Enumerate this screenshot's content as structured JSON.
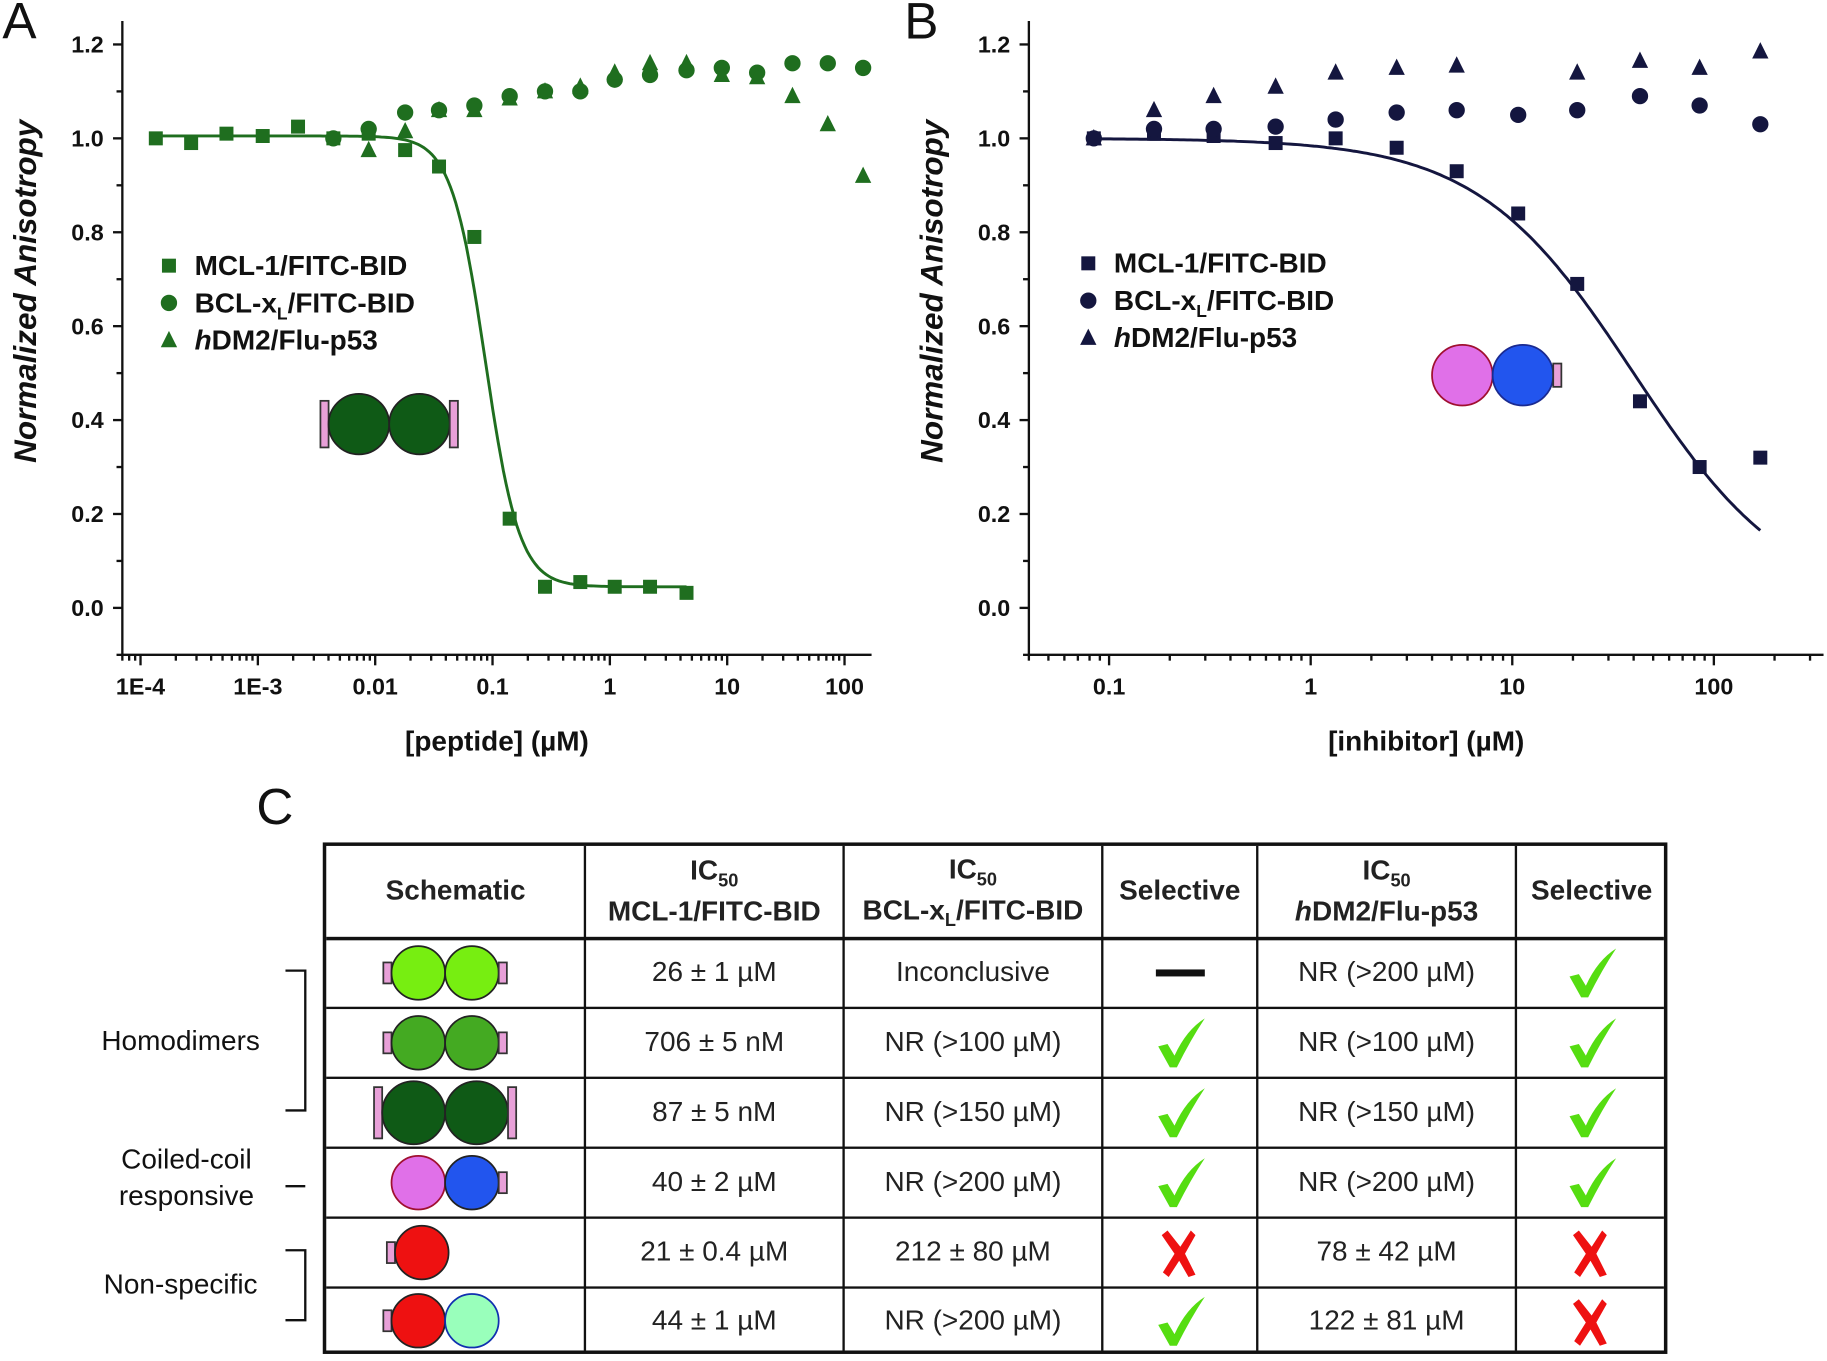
{
  "panels": {
    "a": "A",
    "b": "B",
    "c": "C"
  },
  "colors": {
    "panel_a": "#1f6e1f",
    "panel_b": "#14163f",
    "check": "#55dd11",
    "cross": "#ee1111"
  },
  "chart_data": [
    {
      "type": "scatter",
      "panel": "A",
      "xlabel": "[peptide]  (µM)",
      "ylabel": "Normalized Anisotropy",
      "xscale": "log",
      "xlim": [
        7e-05,
        170
      ],
      "ylim": [
        -0.1,
        1.25
      ],
      "xticks": [
        {
          "v": 0.0001,
          "label": "1E-4"
        },
        {
          "v": 0.001,
          "label": "1E-3"
        },
        {
          "v": 0.01,
          "label": "0.01"
        },
        {
          "v": 0.1,
          "label": "0.1"
        },
        {
          "v": 1,
          "label": "1"
        },
        {
          "v": 10,
          "label": "10"
        },
        {
          "v": 100,
          "label": "100"
        }
      ],
      "yticks": [
        "0.0",
        "0.2",
        "0.4",
        "0.6",
        "0.8",
        "1.0",
        "1.2"
      ],
      "legend": "left-middle",
      "series": [
        {
          "name": "MCL-1/FITC-BID",
          "marker": "square",
          "x": [
            0.000135,
            0.00027,
            0.00054,
            0.0011,
            0.0022,
            0.0044,
            0.0088,
            0.018,
            0.035,
            0.07,
            0.14,
            0.28,
            0.56,
            1.1,
            2.2,
            4.5
          ],
          "y": [
            1.0,
            0.99,
            1.01,
            1.005,
            1.025,
            1.0,
            1.01,
            0.975,
            0.94,
            0.79,
            0.19,
            0.045,
            0.055,
            0.045,
            0.045,
            0.032
          ],
          "fit": {
            "top": 1.005,
            "bottom": 0.045,
            "ic50": 0.087,
            "hill": 3.0,
            "xrange": [
              0.000135,
              4.5
            ]
          }
        },
        {
          "name": "BCL-xL/FITC-BID",
          "name_main": "BCL-x",
          "name_sub": "L",
          "name_rest": "/FITC-BID",
          "marker": "circle",
          "x": [
            0.0044,
            0.0088,
            0.018,
            0.035,
            0.07,
            0.14,
            0.28,
            0.56,
            1.1,
            2.2,
            4.5,
            9,
            18,
            36,
            72,
            144
          ],
          "y": [
            1.0,
            1.02,
            1.055,
            1.06,
            1.07,
            1.09,
            1.1,
            1.1,
            1.125,
            1.135,
            1.145,
            1.15,
            1.14,
            1.16,
            1.16,
            1.15
          ]
        },
        {
          "name": "hDM2/Flu-p53",
          "name_italic": "h",
          "name_rest": "DM2/Flu-p53",
          "marker": "triangle",
          "x": [
            0.0088,
            0.018,
            0.035,
            0.07,
            0.14,
            0.28,
            0.56,
            1.1,
            2.2,
            4.5,
            9,
            18,
            36,
            72,
            144
          ],
          "y": [
            0.975,
            1.015,
            1.06,
            1.06,
            1.085,
            1.1,
            1.11,
            1.14,
            1.16,
            1.16,
            1.135,
            1.13,
            1.09,
            1.03,
            0.92
          ]
        }
      ]
    },
    {
      "type": "scatter",
      "panel": "B",
      "xlabel": "[inhibitor] (µM)",
      "ylabel": "Normalized Anisotropy",
      "xscale": "log",
      "xlim": [
        0.04,
        350
      ],
      "ylim": [
        -0.1,
        1.25
      ],
      "xticks": [
        {
          "v": 0.1,
          "label": "0.1"
        },
        {
          "v": 1,
          "label": "1"
        },
        {
          "v": 10,
          "label": "10"
        },
        {
          "v": 100,
          "label": "100"
        }
      ],
      "yticks": [
        "0.0",
        "0.2",
        "0.4",
        "0.6",
        "0.8",
        "1.0",
        "1.2"
      ],
      "legend": "left-middle",
      "series": [
        {
          "name": "MCL-1/FITC-BID",
          "marker": "square",
          "x": [
            0.084,
            0.167,
            0.33,
            0.67,
            1.33,
            2.67,
            5.3,
            10.7,
            21,
            43,
            85,
            170
          ],
          "y": [
            1.0,
            1.01,
            1.005,
            0.99,
            1.0,
            0.98,
            0.93,
            0.84,
            0.69,
            0.44,
            0.3,
            0.32
          ],
          "fit": {
            "top": 1.0,
            "bottom": 0.0,
            "ic50": 40,
            "hill": 1.12,
            "xrange": [
              0.084,
              170
            ]
          }
        },
        {
          "name": "BCL-xL/FITC-BID",
          "name_main": "BCL-x",
          "name_sub": "L",
          "name_rest": "/FITC-BID",
          "marker": "circle",
          "x": [
            0.084,
            0.167,
            0.33,
            0.67,
            1.33,
            2.67,
            5.3,
            10.7,
            21,
            43,
            85,
            170
          ],
          "y": [
            1.0,
            1.02,
            1.02,
            1.025,
            1.04,
            1.055,
            1.06,
            1.05,
            1.06,
            1.09,
            1.07,
            1.03
          ]
        },
        {
          "name": "hDM2/Flu-p53",
          "name_italic": "h",
          "name_rest": "DM2/Flu-p53",
          "marker": "triangle",
          "x": [
            0.084,
            0.167,
            0.33,
            0.67,
            1.33,
            2.67,
            5.3,
            21,
            43,
            85,
            170
          ],
          "y": [
            1.0,
            1.06,
            1.09,
            1.11,
            1.14,
            1.15,
            1.155,
            1.14,
            1.165,
            1.15,
            1.185
          ]
        }
      ]
    }
  ],
  "table": {
    "headers": [
      {
        "line1": "Schematic"
      },
      {
        "ic": "IC",
        "sub": "50",
        "line2": "MCL-1/FITC-BID"
      },
      {
        "ic": "IC",
        "sub": "50",
        "line2a": "BCL-x",
        "line2sub": "L",
        "line2b": "/FITC-BID"
      },
      {
        "line1": "Selective"
      },
      {
        "ic": "IC",
        "sub": "50",
        "italic": "h",
        "line2b": "DM2/Flu-p53"
      },
      {
        "line1": "Selective"
      }
    ],
    "rows": [
      {
        "schematic": {
          "circles": [
            "#77ee11",
            "#77ee11"
          ],
          "tag_left": true,
          "tag_right": true
        },
        "mcl1": "26 ± 1 µM",
        "bclxl": "Inconclusive",
        "sel1": "dash",
        "hdm2": "NR (>200 µM)",
        "sel2": "check"
      },
      {
        "schematic": {
          "circles": [
            "#44aa22",
            "#44aa22"
          ],
          "tag_left": true,
          "tag_right": true
        },
        "mcl1": "706 ± 5 nM",
        "bclxl": "NR (>100 µM)",
        "sel1": "check",
        "hdm2": "NR (>100 µM)",
        "sel2": "check"
      },
      {
        "schematic": {
          "circles": [
            "#0f5a16",
            "#0f5a16"
          ],
          "tag_left": true,
          "tag_right": true
        },
        "mcl1": "87 ± 5 nM",
        "bclxl": "NR (>150 µM)",
        "sel1": "check",
        "hdm2": "NR (>150 µM)",
        "sel2": "check"
      },
      {
        "schematic": {
          "circles": [
            "#e070e8",
            "#2255ee"
          ],
          "tag_left": false,
          "tag_right": true
        },
        "mcl1": "40 ± 2 µM",
        "bclxl": "NR (>200 µM)",
        "sel1": "check",
        "hdm2": "NR (>200 µM)",
        "sel2": "check"
      },
      {
        "schematic": {
          "circles": [
            "#ee1111"
          ],
          "tag_left": true,
          "tag_right": false
        },
        "mcl1": "21 ± 0.4 µM",
        "bclxl": "212 ± 80 µM",
        "sel1": "cross",
        "hdm2": "78 ± 42 µM",
        "sel2": "cross"
      },
      {
        "schematic": {
          "circles": [
            "#ee1111",
            "#99ffbb"
          ],
          "tag_left": true,
          "tag_right": false
        },
        "mcl1": "44 ± 1 µM",
        "bclxl": "NR (>200 µM)",
        "sel1": "check",
        "hdm2": "122 ± 81 µM",
        "sel2": "cross"
      }
    ],
    "groups": {
      "homodimers": "Homodimers",
      "coiled1": "Coiled-coil",
      "coiled2": "responsive",
      "nonspecific": "Non-specific"
    }
  }
}
